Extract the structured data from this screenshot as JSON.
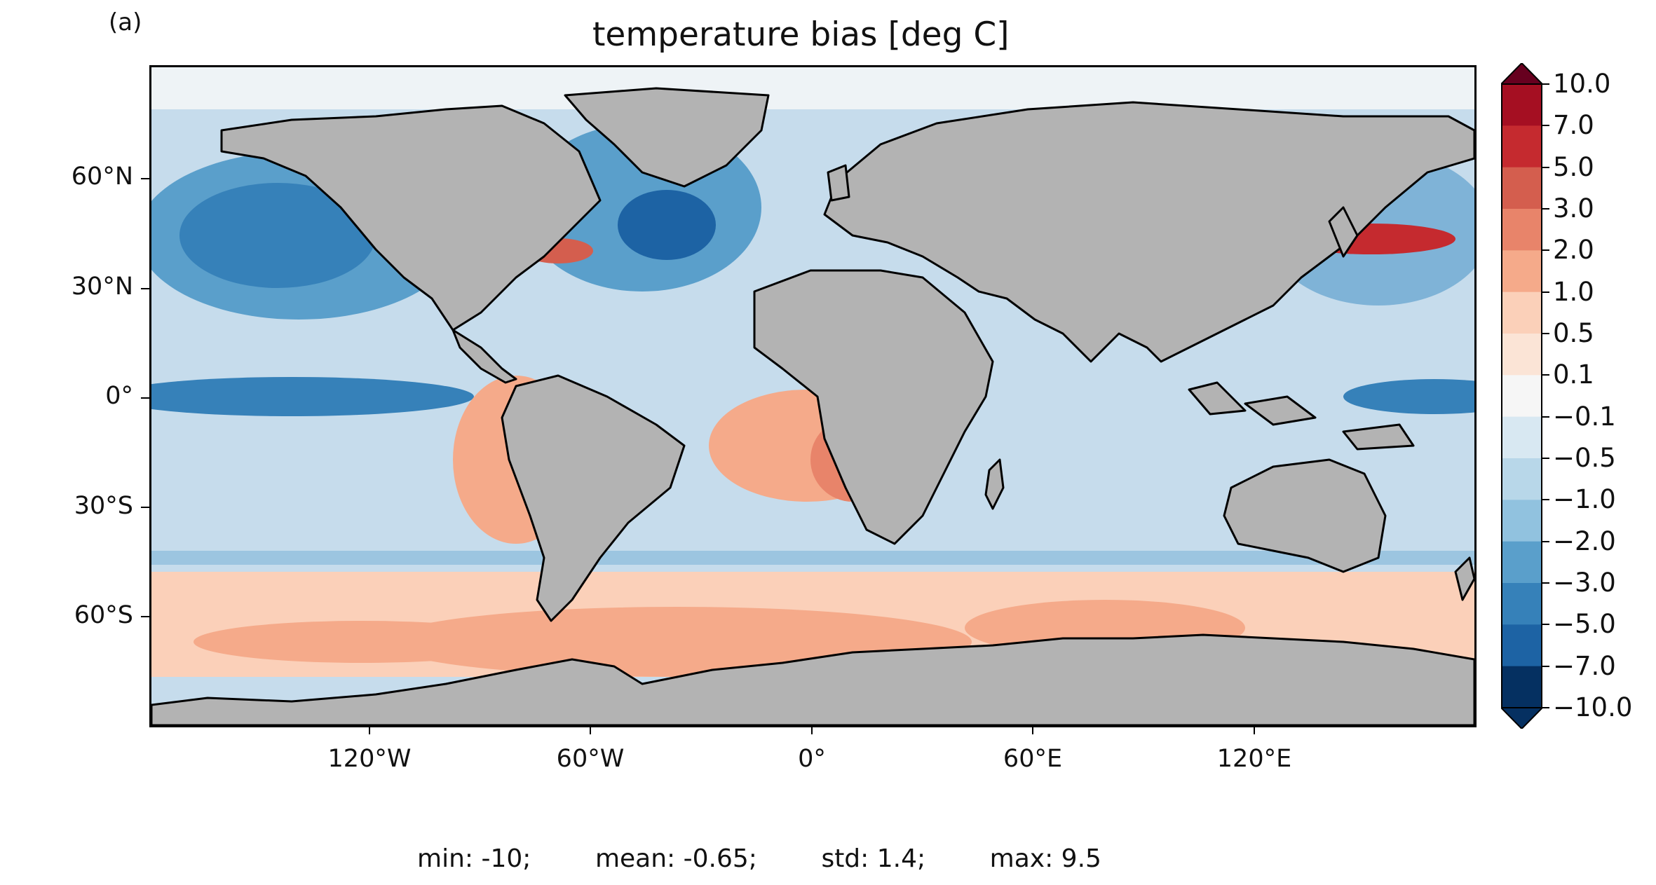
{
  "panel_label": "(a)",
  "title": "temperature bias [deg C]",
  "axes": {
    "y_ticks": [
      "60°N",
      "30°N",
      "0°",
      "30°S",
      "60°S"
    ],
    "x_ticks": [
      "120°W",
      "60°W",
      "0°",
      "60°E",
      "120°E"
    ]
  },
  "colorbar": {
    "labels": [
      "10.0",
      "7.0",
      "5.0",
      "3.0",
      "2.0",
      "1.0",
      "0.5",
      "0.1",
      "−0.1",
      "−0.5",
      "−1.0",
      "−2.0",
      "−3.0",
      "−5.0",
      "−7.0",
      "−10.0"
    ],
    "colors": [
      "#67001f",
      "#a50f22",
      "#c52a2f",
      "#d45e4e",
      "#e8846a",
      "#f5aa8a",
      "#fbd0b9",
      "#fbe4d6",
      "#f6f6f6",
      "#d8e8f2",
      "#b8d7e9",
      "#91c2df",
      "#5a9fcb",
      "#3681b9",
      "#1d63a4",
      "#053061"
    ],
    "extend": "both"
  },
  "stats": {
    "min": "min: -10;",
    "mean": "mean: -0.65;",
    "std": "std: 1.4;",
    "max": "max: 9.5"
  },
  "legend_colors": {
    "land": "#b3b3b3",
    "coast": "#000000"
  }
}
